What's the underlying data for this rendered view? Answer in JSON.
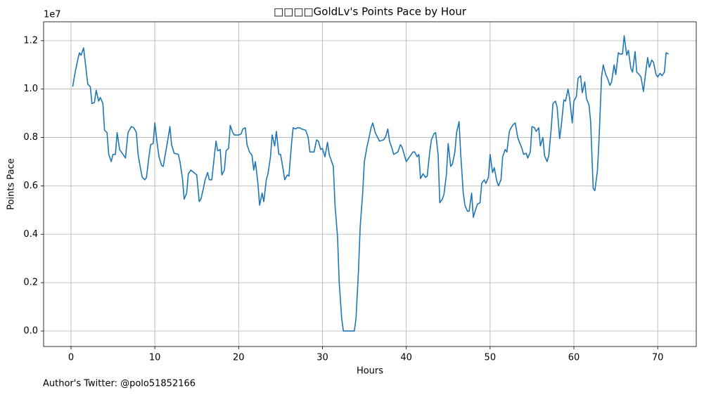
{
  "chart_data": {
    "type": "line",
    "title": "□□□□GoldLv's Points Pace by Hour",
    "xlabel": "Hours",
    "ylabel": "Points Pace",
    "y_offset_label": "1e7",
    "annotation": "Author's Twitter: @polo51852166",
    "color": "#1f77b4",
    "grid": true,
    "xlim": [
      -3.27,
      74.6
    ],
    "ylim": [
      -0.064,
      1.278
    ],
    "xticks": [
      0,
      10,
      20,
      30,
      40,
      50,
      60,
      70
    ],
    "yticks": [
      {
        "value": 0,
        "label": "0.0"
      },
      0.2,
      0.4,
      0.6,
      0.8,
      {
        "value": 1,
        "label": "1.0"
      },
      1.2
    ],
    "x": [
      0.2,
      0.5,
      0.8,
      1.0,
      1.2,
      1.5,
      1.8,
      2.0,
      2.3,
      2.5,
      2.8,
      3.0,
      3.3,
      3.5,
      3.8,
      4.0,
      4.3,
      4.5,
      4.8,
      5.0,
      5.3,
      5.5,
      5.8,
      6.0,
      6.5,
      6.8,
      7.2,
      7.5,
      7.8,
      8.0,
      8.3,
      8.5,
      8.8,
      9.0,
      9.3,
      9.5,
      9.8,
      10.0,
      10.3,
      10.5,
      10.8,
      11.0,
      11.3,
      11.6,
      11.8,
      12.0,
      12.3,
      12.8,
      13.0,
      13.3,
      13.5,
      13.8,
      14.0,
      14.3,
      15.0,
      15.3,
      15.5,
      15.8,
      16.0,
      16.3,
      16.5,
      16.8,
      17.0,
      17.3,
      17.5,
      17.8,
      18.0,
      18.3,
      18.5,
      18.8,
      19.0,
      19.3,
      19.5,
      20.0,
      20.3,
      20.5,
      20.8,
      21.0,
      21.3,
      21.6,
      21.8,
      22.0,
      22.3,
      22.5,
      22.8,
      23.0,
      23.3,
      23.5,
      23.8,
      24.0,
      24.3,
      24.5,
      24.8,
      25.0,
      25.3,
      25.5,
      25.8,
      26.0,
      26.3,
      26.5,
      26.8,
      27.0,
      27.3,
      27.5,
      28.0,
      28.3,
      28.5,
      29.0,
      29.3,
      29.5,
      29.8,
      30.0,
      30.3,
      30.6,
      30.8,
      31.0,
      31.3,
      31.5,
      31.8,
      32.0,
      32.3,
      32.5,
      33.0,
      33.5,
      33.8,
      34.0,
      34.3,
      34.5,
      34.8,
      35.0,
      35.3,
      35.5,
      35.8,
      36.0,
      36.3,
      36.8,
      37.3,
      37.5,
      37.8,
      38.0,
      38.3,
      38.5,
      39.0,
      39.3,
      39.5,
      40.0,
      40.3,
      40.8,
      41.0,
      41.3,
      41.5,
      41.7,
      42.0,
      42.3,
      42.5,
      42.8,
      43.0,
      43.3,
      43.5,
      43.8,
      44.0,
      44.3,
      44.5,
      44.8,
      45.0,
      45.3,
      45.5,
      45.8,
      46.0,
      46.3,
      46.5,
      46.8,
      47.0,
      47.3,
      47.5,
      47.8,
      48.0,
      48.3,
      48.5,
      48.8,
      49.0,
      49.3,
      49.5,
      49.8,
      50.0,
      50.3,
      50.5,
      50.8,
      51.0,
      51.3,
      51.5,
      51.8,
      52.0,
      52.3,
      52.5,
      52.8,
      53.0,
      53.3,
      53.5,
      53.8,
      54.0,
      54.3,
      54.5,
      54.8,
      55.0,
      55.3,
      55.5,
      55.8,
      56.0,
      56.3,
      56.5,
      56.8,
      57.0,
      57.3,
      57.5,
      57.8,
      58.0,
      58.3,
      58.5,
      58.8,
      59.0,
      59.3,
      59.5,
      59.8,
      60.0,
      60.3,
      60.5,
      60.8,
      61.0,
      61.3,
      61.5,
      61.8,
      62.0,
      62.3,
      62.5,
      62.8,
      63.0,
      63.3,
      63.5,
      63.8,
      64.0,
      64.3,
      64.5,
      64.8,
      65.0,
      65.3,
      65.5,
      65.8,
      66.0,
      66.3,
      66.5,
      66.8,
      67.0,
      67.3,
      67.5,
      67.8,
      68.0,
      68.3,
      68.5,
      68.8,
      69.0,
      69.3,
      69.5,
      69.8,
      70.0,
      70.3,
      70.5,
      70.8,
      71.0,
      71.3
    ],
    "values": [
      1.01,
      1.07,
      1.12,
      1.15,
      1.14,
      1.17,
      1.08,
      1.02,
      1.01,
      0.94,
      0.945,
      0.995,
      0.95,
      0.965,
      0.94,
      0.83,
      0.82,
      0.73,
      0.7,
      0.73,
      0.73,
      0.82,
      0.75,
      0.74,
      0.715,
      0.82,
      0.845,
      0.84,
      0.82,
      0.73,
      0.67,
      0.635,
      0.625,
      0.635,
      0.72,
      0.77,
      0.775,
      0.86,
      0.77,
      0.72,
      0.685,
      0.68,
      0.74,
      0.8,
      0.845,
      0.77,
      0.735,
      0.73,
      0.7,
      0.63,
      0.545,
      0.57,
      0.65,
      0.665,
      0.645,
      0.535,
      0.545,
      0.59,
      0.625,
      0.655,
      0.625,
      0.625,
      0.69,
      0.785,
      0.745,
      0.75,
      0.645,
      0.665,
      0.745,
      0.755,
      0.85,
      0.82,
      0.81,
      0.81,
      0.815,
      0.835,
      0.84,
      0.77,
      0.74,
      0.725,
      0.665,
      0.7,
      0.61,
      0.52,
      0.57,
      0.535,
      0.625,
      0.65,
      0.72,
      0.81,
      0.765,
      0.825,
      0.73,
      0.73,
      0.67,
      0.625,
      0.645,
      0.64,
      0.77,
      0.84,
      0.835,
      0.84,
      0.84,
      0.835,
      0.83,
      0.8,
      0.74,
      0.74,
      0.79,
      0.785,
      0.75,
      0.755,
      0.72,
      0.78,
      0.73,
      0.71,
      0.68,
      0.52,
      0.39,
      0.2,
      0.05,
      0.0,
      0.0,
      0.0,
      0.0,
      0.05,
      0.25,
      0.43,
      0.57,
      0.7,
      0.76,
      0.79,
      0.84,
      0.86,
      0.82,
      0.785,
      0.79,
      0.8,
      0.835,
      0.785,
      0.755,
      0.73,
      0.74,
      0.77,
      0.76,
      0.7,
      0.715,
      0.74,
      0.74,
      0.72,
      0.73,
      0.63,
      0.65,
      0.635,
      0.64,
      0.74,
      0.79,
      0.815,
      0.82,
      0.73,
      0.53,
      0.545,
      0.565,
      0.65,
      0.775,
      0.68,
      0.69,
      0.74,
      0.82,
      0.865,
      0.73,
      0.57,
      0.52,
      0.495,
      0.495,
      0.57,
      0.47,
      0.505,
      0.525,
      0.53,
      0.61,
      0.625,
      0.61,
      0.635,
      0.73,
      0.655,
      0.675,
      0.62,
      0.6,
      0.625,
      0.72,
      0.75,
      0.74,
      0.825,
      0.84,
      0.855,
      0.86,
      0.8,
      0.78,
      0.755,
      0.73,
      0.735,
      0.715,
      0.74,
      0.845,
      0.84,
      0.825,
      0.84,
      0.765,
      0.8,
      0.725,
      0.7,
      0.725,
      0.84,
      0.94,
      0.95,
      0.925,
      0.795,
      0.85,
      0.955,
      0.95,
      1.0,
      0.96,
      0.86,
      0.95,
      0.97,
      1.045,
      1.055,
      0.985,
      1.03,
      0.96,
      0.935,
      0.865,
      0.59,
      0.58,
      0.66,
      0.79,
      1.05,
      1.1,
      1.06,
      1.045,
      1.015,
      1.03,
      1.1,
      1.06,
      1.15,
      1.145,
      1.145,
      1.22,
      1.14,
      1.16,
      1.085,
      1.07,
      1.155,
      1.07,
      1.06,
      1.05,
      0.99,
      1.05,
      1.13,
      1.09,
      1.12,
      1.11,
      1.06,
      1.05,
      1.065,
      1.055,
      1.07,
      1.15,
      1.145
    ]
  }
}
